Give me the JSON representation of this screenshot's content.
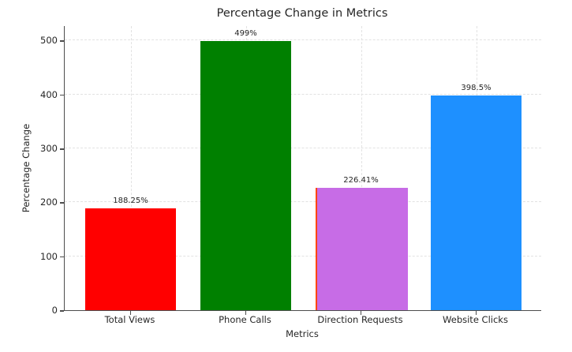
{
  "chart_data": {
    "type": "bar",
    "title": "Percentage Change in Metrics",
    "xlabel": "Metrics",
    "ylabel": "Percentage Change",
    "categories": [
      "Total Views",
      "Phone Calls",
      "Direction Requests",
      "Website Clicks"
    ],
    "values": [
      188.25,
      499,
      226.41,
      398.5
    ],
    "value_labels": [
      "188.25%",
      "499%",
      "226.41%",
      "398.5%"
    ],
    "bar_colors": [
      "#ff0000",
      "#008000",
      "#c76ce6",
      "#1e90ff"
    ],
    "bar_edge_colors": [
      "none",
      "none",
      "#ff4500",
      "none"
    ],
    "yticks": [
      0,
      100,
      200,
      300,
      400,
      500
    ],
    "ytick_labels": [
      "0",
      "100",
      "200",
      "300",
      "400",
      "500"
    ],
    "ylim": [
      0,
      527
    ],
    "grid": "light gray dashed, horizontal at y ticks and vertical at category centers, drawn behind bars",
    "legend": "none",
    "background": "#ffffff"
  }
}
